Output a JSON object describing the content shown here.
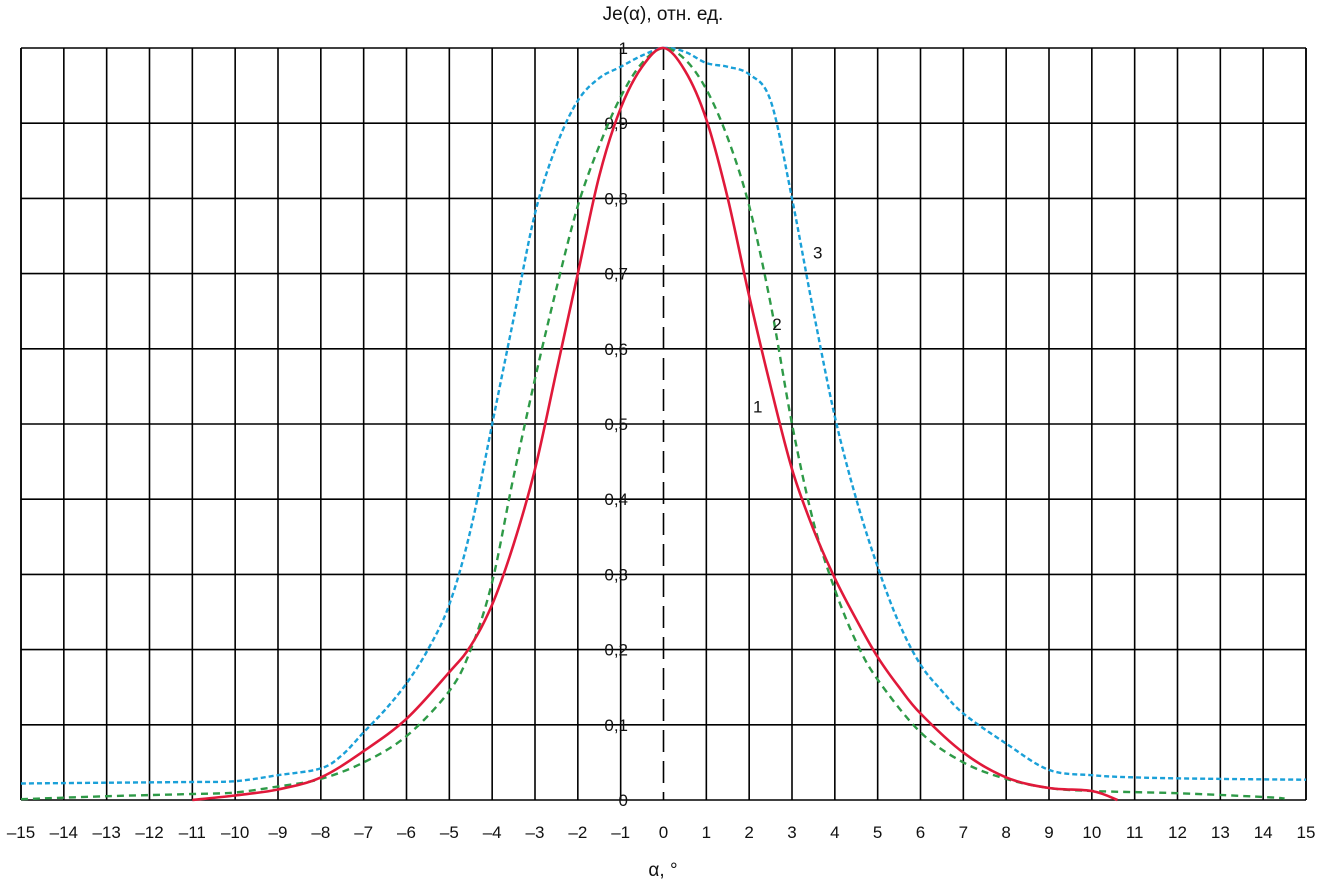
{
  "chart_data": {
    "type": "line",
    "ylabel": "Je(α), отн. ед.",
    "xlabel": "α, °",
    "xlim": [
      -15,
      15
    ],
    "ylim": [
      0,
      1
    ],
    "grid": true,
    "x_ticks": [
      "–15",
      "–14",
      "–13",
      "–12",
      "–11",
      "–10",
      "–9",
      "–8",
      "–7",
      "–6",
      "–5",
      "–4",
      "–3",
      "–2",
      "–1",
      "0",
      "1",
      "2",
      "3",
      "4",
      "5",
      "6",
      "7",
      "8",
      "9",
      "10",
      "11",
      "12",
      "13",
      "14",
      "15"
    ],
    "y_ticks": [
      "0",
      "0,1",
      "0,2",
      "0,3",
      "0,4",
      "0,5",
      "0,6",
      "0,7",
      "0,8",
      "0,9",
      "1"
    ],
    "series": [
      {
        "label": "1",
        "color": "#e0193a",
        "style": "solid",
        "points": [
          [
            -11,
            0.0
          ],
          [
            -10,
            0.006
          ],
          [
            -9,
            0.014
          ],
          [
            -8,
            0.03
          ],
          [
            -7,
            0.065
          ],
          [
            -6,
            0.108
          ],
          [
            -5,
            0.17
          ],
          [
            -4.5,
            0.205
          ],
          [
            -4,
            0.26
          ],
          [
            -3.5,
            0.34
          ],
          [
            -3,
            0.44
          ],
          [
            -2.5,
            0.57
          ],
          [
            -2,
            0.7
          ],
          [
            -1.5,
            0.83
          ],
          [
            -1,
            0.92
          ],
          [
            -0.5,
            0.975
          ],
          [
            0,
            1.0
          ],
          [
            0.5,
            0.97
          ],
          [
            1,
            0.905
          ],
          [
            1.5,
            0.8
          ],
          [
            2,
            0.67
          ],
          [
            2.5,
            0.55
          ],
          [
            3,
            0.44
          ],
          [
            3.5,
            0.36
          ],
          [
            4,
            0.295
          ],
          [
            4.5,
            0.24
          ],
          [
            5,
            0.19
          ],
          [
            5.5,
            0.15
          ],
          [
            6,
            0.115
          ],
          [
            7,
            0.063
          ],
          [
            8,
            0.03
          ],
          [
            9,
            0.016
          ],
          [
            10,
            0.012
          ],
          [
            10.6,
            0.0
          ]
        ]
      },
      {
        "label": "2",
        "color": "#2e9a47",
        "style": "dashed",
        "points": [
          [
            -15,
            0.001
          ],
          [
            -13,
            0.005
          ],
          [
            -11,
            0.008
          ],
          [
            -10,
            0.01
          ],
          [
            -9,
            0.018
          ],
          [
            -8,
            0.028
          ],
          [
            -7,
            0.05
          ],
          [
            -6,
            0.085
          ],
          [
            -5,
            0.145
          ],
          [
            -4.5,
            0.2
          ],
          [
            -4,
            0.29
          ],
          [
            -3.5,
            0.43
          ],
          [
            -3,
            0.56
          ],
          [
            -2.5,
            0.68
          ],
          [
            -2,
            0.79
          ],
          [
            -1.5,
            0.87
          ],
          [
            -1,
            0.935
          ],
          [
            -0.5,
            0.98
          ],
          [
            0,
            1.0
          ],
          [
            0.5,
            0.985
          ],
          [
            1,
            0.945
          ],
          [
            1.5,
            0.88
          ],
          [
            2,
            0.79
          ],
          [
            2.5,
            0.66
          ],
          [
            3,
            0.5
          ],
          [
            3.5,
            0.37
          ],
          [
            4,
            0.28
          ],
          [
            4.5,
            0.21
          ],
          [
            5,
            0.16
          ],
          [
            6,
            0.09
          ],
          [
            7,
            0.05
          ],
          [
            8,
            0.028
          ],
          [
            9,
            0.016
          ],
          [
            10,
            0.012
          ],
          [
            12,
            0.009
          ],
          [
            14,
            0.004
          ],
          [
            14.5,
            0.002
          ]
        ]
      },
      {
        "label": "3",
        "color": "#1aa0d8",
        "style": "dashed",
        "points": [
          [
            -15,
            0.022
          ],
          [
            -13,
            0.023
          ],
          [
            -11,
            0.024
          ],
          [
            -10,
            0.025
          ],
          [
            -9,
            0.033
          ],
          [
            -8,
            0.042
          ],
          [
            -7.5,
            0.06
          ],
          [
            -7,
            0.09
          ],
          [
            -6.5,
            0.12
          ],
          [
            -6,
            0.155
          ],
          [
            -5.5,
            0.2
          ],
          [
            -5,
            0.26
          ],
          [
            -4.5,
            0.36
          ],
          [
            -4,
            0.5
          ],
          [
            -3.5,
            0.64
          ],
          [
            -3,
            0.78
          ],
          [
            -2.5,
            0.87
          ],
          [
            -2,
            0.93
          ],
          [
            -1.5,
            0.96
          ],
          [
            -1,
            0.975
          ],
          [
            -0.5,
            0.99
          ],
          [
            0,
            1.0
          ],
          [
            0.5,
            0.995
          ],
          [
            1,
            0.98
          ],
          [
            1.5,
            0.975
          ],
          [
            2,
            0.965
          ],
          [
            2.5,
            0.93
          ],
          [
            3,
            0.8
          ],
          [
            3.5,
            0.65
          ],
          [
            4,
            0.51
          ],
          [
            4.5,
            0.4
          ],
          [
            5,
            0.31
          ],
          [
            5.5,
            0.235
          ],
          [
            6,
            0.18
          ],
          [
            6.5,
            0.145
          ],
          [
            7,
            0.115
          ],
          [
            8,
            0.075
          ],
          [
            9,
            0.04
          ],
          [
            10,
            0.033
          ],
          [
            11,
            0.03
          ],
          [
            13,
            0.028
          ],
          [
            15,
            0.027
          ]
        ]
      }
    ],
    "annotations": [
      {
        "text": "1",
        "x": 2.2,
        "y": 0.515
      },
      {
        "text": "2",
        "x": 2.65,
        "y": 0.625
      },
      {
        "text": "3",
        "x": 3.6,
        "y": 0.72
      }
    ]
  }
}
